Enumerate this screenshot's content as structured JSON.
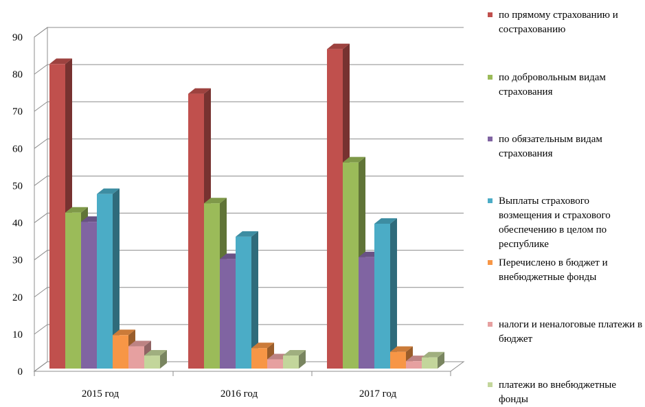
{
  "chart_data": {
    "type": "bar",
    "title": "",
    "xlabel": "",
    "ylabel": "",
    "ylim": [
      0,
      90
    ],
    "yticks": [
      0,
      10,
      20,
      30,
      40,
      50,
      60,
      70,
      80,
      90
    ],
    "categories": [
      "2015 год",
      "2016 год",
      "2017 год"
    ],
    "grid": true,
    "three_d": true,
    "legend_position": "right",
    "series": [
      {
        "name": "по прямому страхованию и сострахованию",
        "color": "#c0504d",
        "values": [
          82,
          74,
          86
        ]
      },
      {
        "name": "по добровольным видам страхования",
        "color": "#9bbb59",
        "values": [
          42,
          44.5,
          55.5
        ]
      },
      {
        "name": "по обязательным видам страхования",
        "color": "#8064a2",
        "values": [
          39.5,
          29.5,
          30
        ]
      },
      {
        "name": "Выплаты страхового возмещения и страхового обеспечению в целом по республике",
        "color": "#4bacc6",
        "values": [
          47,
          35.5,
          39
        ]
      },
      {
        "name": "Перечислено в бюджет и внебюджетные фонды",
        "color": "#f79646",
        "values": [
          9,
          5.5,
          4.5
        ]
      },
      {
        "name": "налоги и неналоговые платежи в бюджет",
        "color": "#e6a0a0",
        "values": [
          6,
          2.5,
          2
        ]
      },
      {
        "name": "платежи во внебюджетные фонды",
        "color": "#c3d69b",
        "values": [
          3.5,
          3.5,
          3
        ]
      }
    ]
  }
}
